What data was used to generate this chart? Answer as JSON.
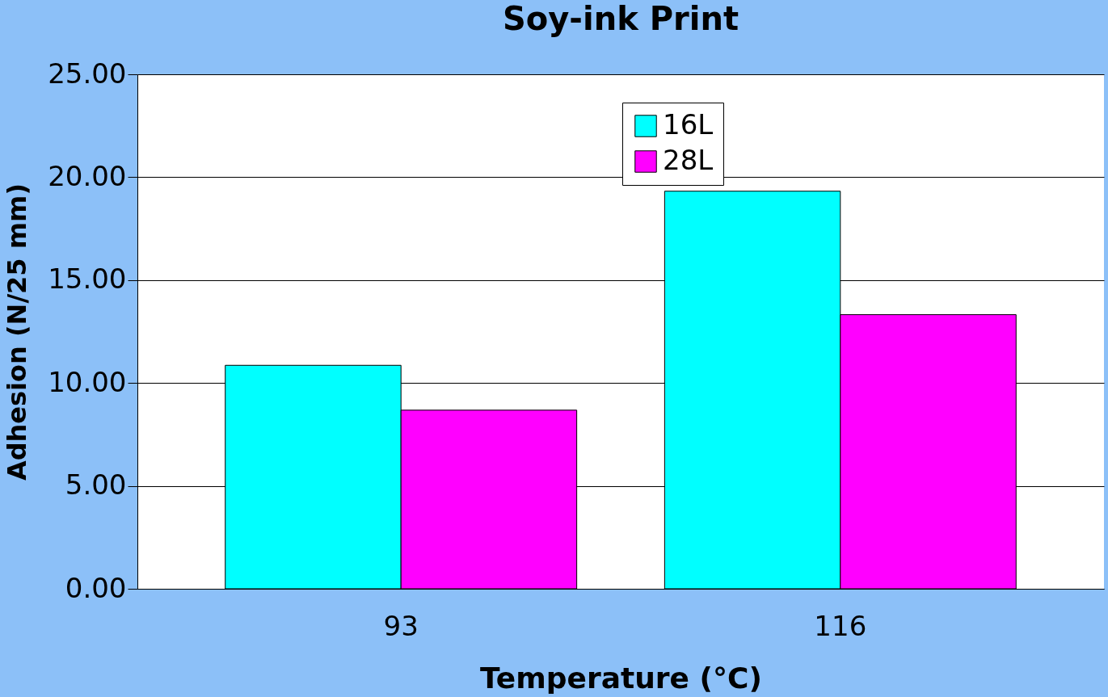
{
  "chart_data": {
    "type": "bar",
    "title": "Soy-ink Print",
    "xlabel": "Temperature (°C)",
    "ylabel": "Adhesion (N/25 mm)",
    "categories": [
      "93",
      "116"
    ],
    "series": [
      {
        "name": "16L",
        "color": "#00ffff",
        "values": [
          10.86,
          19.32
        ]
      },
      {
        "name": "28L",
        "color": "#ff00ff",
        "values": [
          8.68,
          13.32
        ]
      }
    ],
    "ylim": [
      0,
      25
    ],
    "yticks": [
      {
        "value": 0,
        "label": "0.00"
      },
      {
        "value": 5,
        "label": "5.00"
      },
      {
        "value": 10,
        "label": "10.00"
      },
      {
        "value": 15,
        "label": "15.00"
      },
      {
        "value": 20,
        "label": "20.00"
      },
      {
        "value": 25,
        "label": "25.00"
      }
    ],
    "grid": "y",
    "legend": "top"
  }
}
